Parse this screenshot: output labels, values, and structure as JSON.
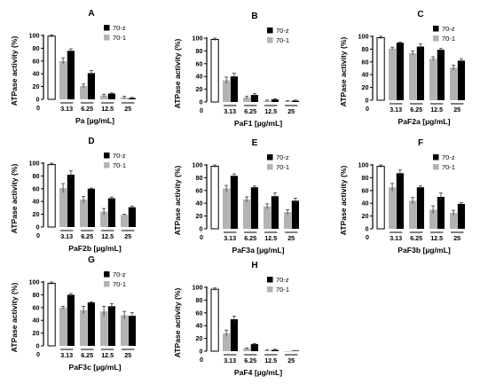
{
  "chart_data": [
    {
      "type": "bar",
      "panel": "A",
      "xlabel": "Pa [µg/mL]",
      "ylabel": "ATPase activity (%)",
      "ylim": [
        0,
        100
      ],
      "yticks": [
        0,
        20,
        40,
        60,
        80,
        100
      ],
      "control": {
        "label": "0",
        "value": 99,
        "error": 2
      },
      "categories": [
        "3.13",
        "6.25",
        "12.5",
        "25"
      ],
      "series": [
        {
          "name": "70-1",
          "color": "#b3b3b3",
          "values": [
            60,
            21,
            6,
            3
          ],
          "errors": [
            5,
            3,
            2,
            2
          ]
        },
        {
          "name": "70-z",
          "color": "#000000",
          "values": [
            76,
            41,
            9,
            2
          ],
          "errors": [
            3,
            4,
            1,
            1
          ]
        }
      ]
    },
    {
      "type": "bar",
      "panel": "B",
      "xlabel": "PaF1 [µg/mL]",
      "ylabel": "ATPase activity (%)",
      "ylim": [
        0,
        100
      ],
      "yticks": [
        0,
        20,
        40,
        60,
        80,
        100
      ],
      "control": {
        "label": "0",
        "value": 98,
        "error": 2
      },
      "categories": [
        "3.13",
        "6.25",
        "12.5",
        "25"
      ],
      "series": [
        {
          "name": "70-1",
          "color": "#b3b3b3",
          "values": [
            34,
            7,
            2,
            1
          ],
          "errors": [
            5,
            2,
            1,
            1
          ]
        },
        {
          "name": "70-z",
          "color": "#000000",
          "values": [
            40,
            11,
            4,
            2
          ],
          "errors": [
            5,
            2,
            1,
            1
          ]
        }
      ]
    },
    {
      "type": "bar",
      "panel": "C",
      "xlabel": "PaF2a [µg/mL]",
      "ylabel": "ATPase activity (%)",
      "ylim": [
        0,
        100
      ],
      "yticks": [
        0,
        20,
        40,
        60,
        80,
        100
      ],
      "control": {
        "label": "0",
        "value": 98,
        "error": 2
      },
      "categories": [
        "3.13",
        "6.25",
        "12.5",
        "25"
      ],
      "series": [
        {
          "name": "70-1",
          "color": "#b3b3b3",
          "values": [
            81,
            74,
            65,
            51
          ],
          "errors": [
            2,
            3,
            3,
            4
          ]
        },
        {
          "name": "70-z",
          "color": "#000000",
          "values": [
            90,
            84,
            79,
            62
          ],
          "errors": [
            1,
            4,
            2,
            3
          ]
        }
      ]
    },
    {
      "type": "bar",
      "panel": "D",
      "xlabel": "PaF2b [µg/mL]",
      "ylabel": "ATPase activity (%)",
      "ylim": [
        0,
        100
      ],
      "yticks": [
        0,
        20,
        40,
        60,
        80,
        100
      ],
      "control": {
        "label": "0",
        "value": 98,
        "error": 2
      },
      "categories": [
        "3.13",
        "6.25",
        "12.5",
        "25"
      ],
      "series": [
        {
          "name": "70-1",
          "color": "#b3b3b3",
          "values": [
            61,
            43,
            24,
            19
          ],
          "errors": [
            7,
            5,
            5,
            1
          ]
        },
        {
          "name": "70-z",
          "color": "#000000",
          "values": [
            82,
            60,
            45,
            31
          ],
          "errors": [
            6,
            1,
            2,
            2
          ]
        }
      ]
    },
    {
      "type": "bar",
      "panel": "E",
      "xlabel": "PaF3a [µg/mL]",
      "ylabel": "ATPase activity (%)",
      "ylim": [
        0,
        100
      ],
      "yticks": [
        0,
        20,
        40,
        60,
        80,
        100
      ],
      "control": {
        "label": "0",
        "value": 98,
        "error": 2
      },
      "categories": [
        "3.13",
        "6.25",
        "12.5",
        "25"
      ],
      "series": [
        {
          "name": "70-1",
          "color": "#b3b3b3",
          "values": [
            63,
            46,
            35,
            26
          ],
          "errors": [
            5,
            4,
            4,
            4
          ]
        },
        {
          "name": "70-z",
          "color": "#000000",
          "values": [
            83,
            65,
            51,
            44
          ],
          "errors": [
            3,
            2,
            5,
            4
          ]
        }
      ]
    },
    {
      "type": "bar",
      "panel": "F",
      "xlabel": "PaF3b [µg/mL]",
      "ylabel": "ATPase activity (%)",
      "ylim": [
        0,
        100
      ],
      "yticks": [
        0,
        20,
        40,
        60,
        80,
        100
      ],
      "control": {
        "label": "0",
        "value": 98,
        "error": 2
      },
      "categories": [
        "3.13",
        "6.25",
        "12.5",
        "25"
      ],
      "series": [
        {
          "name": "70-1",
          "color": "#b3b3b3",
          "values": [
            65,
            44,
            30,
            25
          ],
          "errors": [
            6,
            5,
            6,
            4
          ]
        },
        {
          "name": "70-z",
          "color": "#000000",
          "values": [
            87,
            65,
            50,
            39
          ],
          "errors": [
            5,
            2,
            6,
            2
          ]
        }
      ]
    },
    {
      "type": "bar",
      "panel": "G",
      "xlabel": "PaF3c [µg/mL]",
      "ylabel": "ATPase activity (%)",
      "ylim": [
        0,
        100
      ],
      "yticks": [
        0,
        20,
        40,
        60,
        80,
        100
      ],
      "control": {
        "label": "0",
        "value": 98,
        "error": 2
      },
      "categories": [
        "3.13",
        "6.25",
        "12.5",
        "25"
      ],
      "series": [
        {
          "name": "70-1",
          "color": "#b3b3b3",
          "values": [
            60,
            56,
            54,
            48
          ],
          "errors": [
            2,
            6,
            8,
            6
          ]
        },
        {
          "name": "70-z",
          "color": "#000000",
          "values": [
            80,
            68,
            62,
            47
          ],
          "errors": [
            2,
            1,
            4,
            5
          ]
        }
      ]
    },
    {
      "type": "bar",
      "panel": "H",
      "xlabel": "PaF4 [µg/mL]",
      "ylabel": "ATPase activity (%)",
      "ylim": [
        0,
        100
      ],
      "yticks": [
        0,
        20,
        40,
        60,
        80,
        100
      ],
      "control": {
        "label": "0",
        "value": 97,
        "error": 2
      },
      "categories": [
        "3.13",
        "6.25",
        "12.5",
        "25"
      ],
      "series": [
        {
          "name": "70-1",
          "color": "#b3b3b3",
          "values": [
            28,
            4,
            1,
            0
          ],
          "errors": [
            5,
            1,
            1,
            0
          ]
        },
        {
          "name": "70-z",
          "color": "#000000",
          "values": [
            50,
            11,
            2,
            1
          ],
          "errors": [
            5,
            1,
            1,
            0
          ]
        }
      ]
    }
  ]
}
